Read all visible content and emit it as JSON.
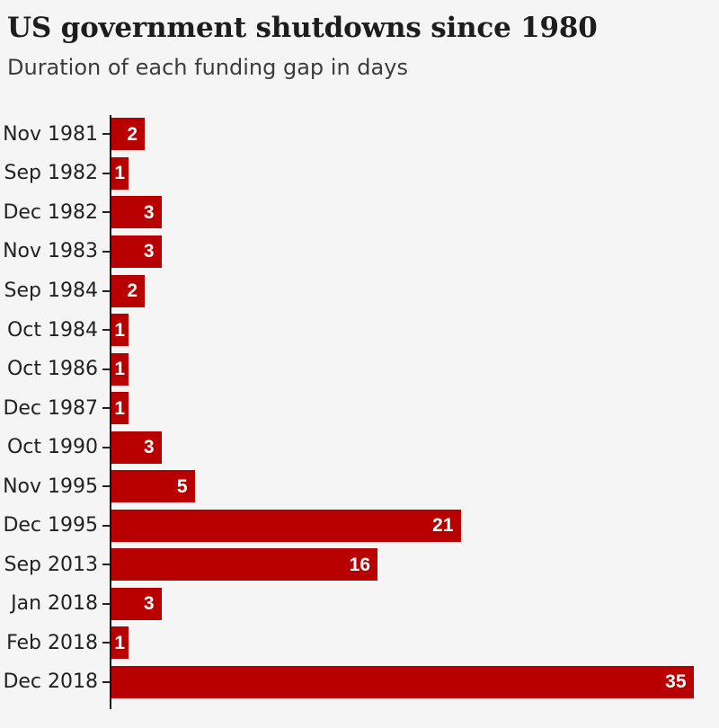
{
  "header": {
    "title": "US government shutdowns since 1980",
    "subtitle": "Duration of each funding gap in days"
  },
  "chart_data": {
    "type": "bar",
    "orientation": "horizontal",
    "title": "US government shutdowns since 1980",
    "subtitle": "Duration of each funding gap in days",
    "categories": [
      "Nov 1981",
      "Sep 1982",
      "Dec 1982",
      "Nov 1983",
      "Sep 1984",
      "Oct 1984",
      "Oct 1986",
      "Dec 1987",
      "Oct 1990",
      "Nov 1995",
      "Dec 1995",
      "Sep 2013",
      "Jan 2018",
      "Feb 2018",
      "Dec 2018"
    ],
    "values": [
      2,
      1,
      3,
      3,
      2,
      1,
      1,
      1,
      3,
      5,
      21,
      16,
      3,
      1,
      35
    ],
    "xlabel": "",
    "ylabel": "",
    "xlim": [
      0,
      35
    ],
    "value_labels_shown": true,
    "grid": false,
    "legend": false
  },
  "colors": {
    "background": "#f5f5f5",
    "bar": "#b80000",
    "value_label": "#ffffff",
    "axis": "#161616",
    "tick": "#222222",
    "title_text": "#1d1d1d",
    "subtitle_text": "#3c3c3c",
    "category_text": "#222222"
  }
}
